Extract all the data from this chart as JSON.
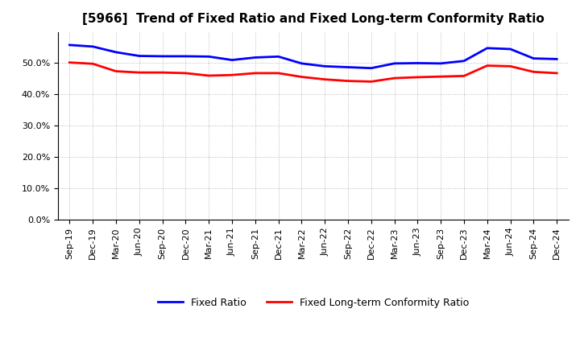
{
  "title": "[5966]  Trend of Fixed Ratio and Fixed Long-term Conformity Ratio",
  "x_labels": [
    "Sep-19",
    "Dec-19",
    "Mar-20",
    "Jun-20",
    "Sep-20",
    "Dec-20",
    "Mar-21",
    "Jun-21",
    "Sep-21",
    "Dec-21",
    "Mar-22",
    "Jun-22",
    "Sep-22",
    "Dec-22",
    "Mar-23",
    "Jun-23",
    "Sep-23",
    "Dec-23",
    "Mar-24",
    "Jun-24",
    "Sep-24",
    "Dec-24"
  ],
  "fixed_ratio": [
    0.558,
    0.553,
    0.535,
    0.523,
    0.522,
    0.522,
    0.521,
    0.51,
    0.518,
    0.521,
    0.499,
    0.49,
    0.487,
    0.484,
    0.499,
    0.5,
    0.499,
    0.507,
    0.548,
    0.545,
    0.515,
    0.513
  ],
  "fixed_lt_ratio": [
    0.502,
    0.498,
    0.474,
    0.47,
    0.47,
    0.468,
    0.46,
    0.462,
    0.468,
    0.468,
    0.456,
    0.448,
    0.443,
    0.441,
    0.452,
    0.455,
    0.457,
    0.459,
    0.492,
    0.49,
    0.472,
    0.468
  ],
  "fixed_ratio_color": "#0000FF",
  "fixed_lt_ratio_color": "#FF0000",
  "ylim": [
    0.0,
    0.6
  ],
  "yticks": [
    0.0,
    0.1,
    0.2,
    0.3,
    0.4,
    0.5
  ],
  "background_color": "#FFFFFF",
  "grid_color": "#AAAAAA",
  "legend_fixed": "Fixed Ratio",
  "legend_fixed_lt": "Fixed Long-term Conformity Ratio",
  "title_fontsize": 11,
  "tick_fontsize": 8,
  "legend_fontsize": 9
}
